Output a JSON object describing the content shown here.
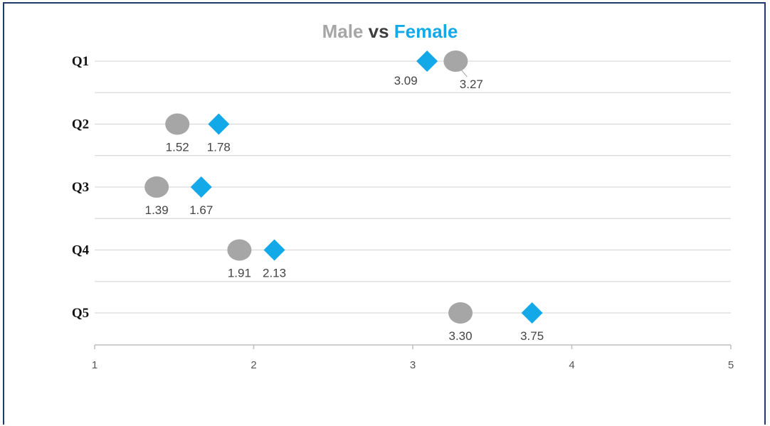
{
  "chart_data": {
    "type": "scatter",
    "title": {
      "part1": "Male",
      "part2": " vs ",
      "part3": "Female"
    },
    "categories": [
      "Q1",
      "Q2",
      "Q3",
      "Q4",
      "Q5"
    ],
    "xlim": [
      1,
      5
    ],
    "xticks": [
      "1",
      "2",
      "3",
      "4",
      "5"
    ],
    "grid": true,
    "series": [
      {
        "name": "Male",
        "marker": "circle",
        "color": "#a6a6a6",
        "values": [
          3.27,
          1.52,
          1.39,
          1.91,
          3.3
        ],
        "labels": [
          "3.27",
          "1.52",
          "1.39",
          "1.91",
          "3.30"
        ]
      },
      {
        "name": "Female",
        "marker": "diamond",
        "color": "#13a8e8",
        "values": [
          3.09,
          1.78,
          1.67,
          2.13,
          3.75
        ],
        "labels": [
          "3.09",
          "1.78",
          "1.67",
          "2.13",
          "3.75"
        ]
      }
    ]
  },
  "colors": {
    "title_male": "#a6a6a6",
    "title_vs": "#3d3d3d",
    "title_female": "#13a8e8",
    "grid": "#d9d9d9",
    "axis": "#bfbfbf"
  }
}
